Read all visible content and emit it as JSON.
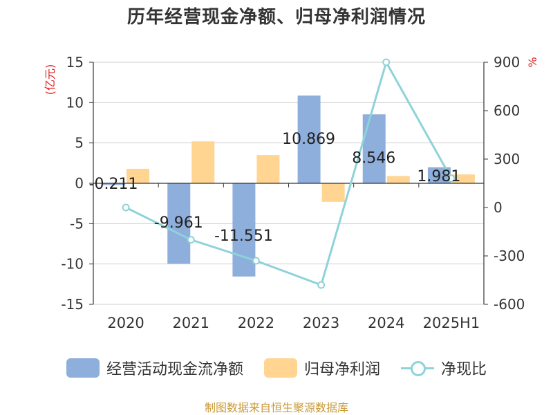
{
  "title": "历年经营现金净额、归母净利润情况",
  "source": "制图数据来自恒生聚源数据库",
  "chart_data": {
    "type": "bar",
    "categories": [
      "2020",
      "2021",
      "2022",
      "2023",
      "2024",
      "2025H1"
    ],
    "y_left": {
      "label": "(亿元)",
      "ticks": [
        15,
        10,
        5,
        0,
        -5,
        -10,
        -15
      ],
      "range": [
        -15,
        15
      ]
    },
    "y_right": {
      "label": "%",
      "ticks": [
        900,
        600,
        300,
        0,
        -300,
        -600
      ],
      "range": [
        -600,
        900
      ]
    },
    "series": [
      {
        "name": "经营活动现金流净额",
        "kind": "bar",
        "axis": "left",
        "color": "#8eaedb",
        "values": [
          -0.211,
          -9.961,
          -11.551,
          10.869,
          8.546,
          1.981
        ],
        "labels": [
          "-0.211",
          "-9.961",
          "-11.551",
          "10.869",
          "8.546",
          "1.981"
        ]
      },
      {
        "name": "归母净利润",
        "kind": "bar",
        "axis": "left",
        "color": "#ffd591",
        "values": [
          1.8,
          5.2,
          3.5,
          -2.3,
          0.9,
          1.1
        ]
      },
      {
        "name": "净现比",
        "kind": "line",
        "axis": "right",
        "color": "#8dd3d9",
        "values": [
          0,
          -200,
          -330,
          -480,
          900,
          180
        ]
      }
    ],
    "grid": true,
    "legend_position": "bottom"
  }
}
